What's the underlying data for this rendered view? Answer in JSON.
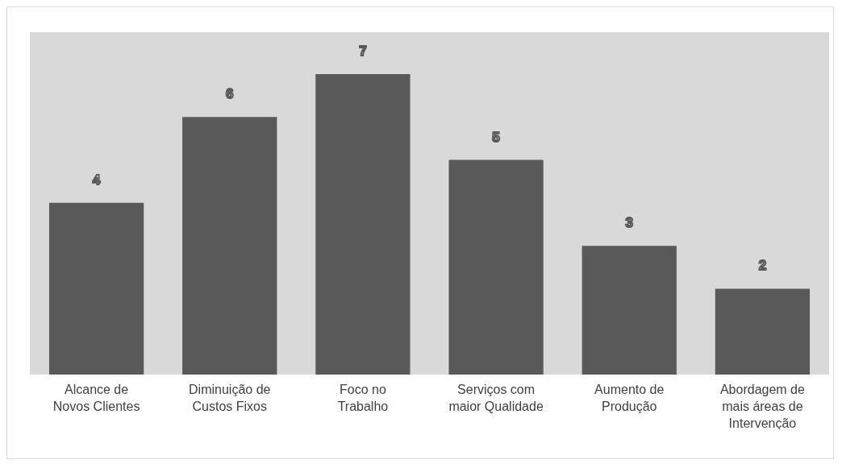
{
  "chart_data": {
    "type": "bar",
    "categories": [
      "Alcance de Novos Clientes",
      "Diminuição de Custos Fixos",
      "Foco no Trabalho",
      "Serviços com maior Qualidade",
      "Aumento de Produção",
      "Abordagem de mais áreas de Intervenção"
    ],
    "values": [
      4,
      6,
      7,
      5,
      3,
      2
    ],
    "color": "#595959",
    "data_labels": true
  }
}
